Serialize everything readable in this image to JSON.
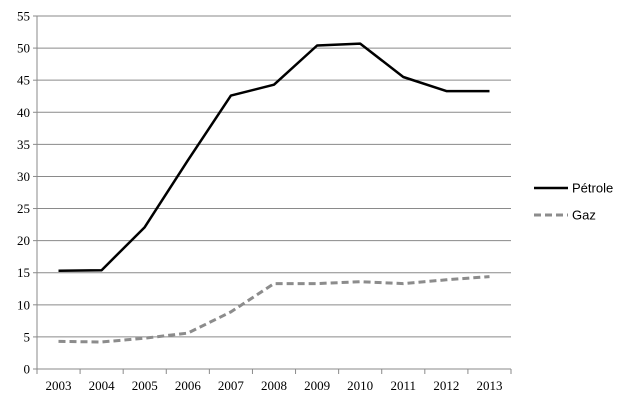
{
  "chart_data": {
    "type": "line",
    "x": [
      "2003",
      "2004",
      "2005",
      "2006",
      "2007",
      "2008",
      "2009",
      "2010",
      "2011",
      "2012",
      "2013"
    ],
    "ylim": [
      0,
      55
    ],
    "yticks": [
      0,
      5,
      10,
      15,
      20,
      25,
      30,
      35,
      40,
      45,
      50,
      55
    ],
    "grid": "horizontal",
    "legend_position": "right",
    "series": [
      {
        "name": "Pétrole",
        "color": "#000000",
        "dash": "solid",
        "values": [
          15.3,
          15.4,
          22.1,
          32.5,
          42.6,
          44.3,
          50.4,
          50.7,
          45.5,
          43.3,
          43.3
        ]
      },
      {
        "name": "Gaz",
        "color": "#8c8c8c",
        "dash": "dashed",
        "values": [
          4.3,
          4.2,
          4.8,
          5.6,
          8.9,
          13.3,
          13.3,
          13.6,
          13.3,
          13.9,
          14.4
        ]
      }
    ]
  }
}
